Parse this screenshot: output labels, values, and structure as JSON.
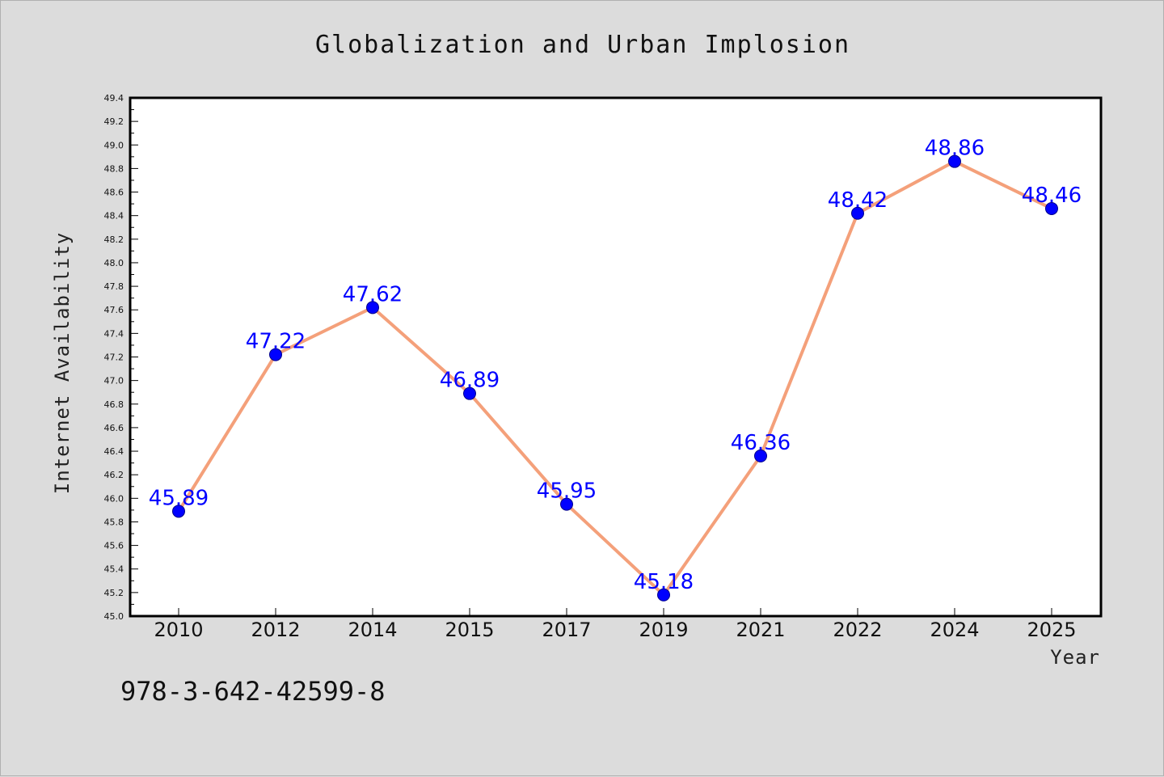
{
  "chart_data": {
    "type": "line",
    "title": "Globalization and Urban Implosion",
    "xlabel": "Year",
    "ylabel": "Internet Availability",
    "categories": [
      "2010",
      "2012",
      "2014",
      "2015",
      "2017",
      "2019",
      "2021",
      "2022",
      "2024",
      "2025"
    ],
    "series": [
      {
        "values": [
          45.89,
          47.22,
          47.62,
          46.89,
          45.95,
          45.18,
          46.36,
          48.42,
          48.86,
          48.46
        ],
        "labels": [
          "45.89",
          "47.22",
          "47.62",
          "46.89",
          "45.95",
          "45.18",
          "46.36",
          "48.42",
          "48.86",
          "48.46"
        ],
        "line_color": "#f4a07a",
        "marker_color": "#0000ff"
      }
    ],
    "ylim": [
      45.0,
      49.4
    ],
    "yticks": [
      "45.0",
      "45.2",
      "45.4",
      "45.6",
      "45.8",
      "46.0",
      "46.2",
      "46.4",
      "46.6",
      "46.8",
      "47.0",
      "47.2",
      "47.4",
      "47.6",
      "47.8",
      "48.0",
      "48.2",
      "48.4",
      "48.6",
      "48.8",
      "49.0",
      "49.2",
      "49.4"
    ],
    "grid": false,
    "background": "#dcdcdc",
    "plot_background": "#ffffff"
  },
  "annotation": {
    "isbn": "978-3-642-42599-8"
  }
}
